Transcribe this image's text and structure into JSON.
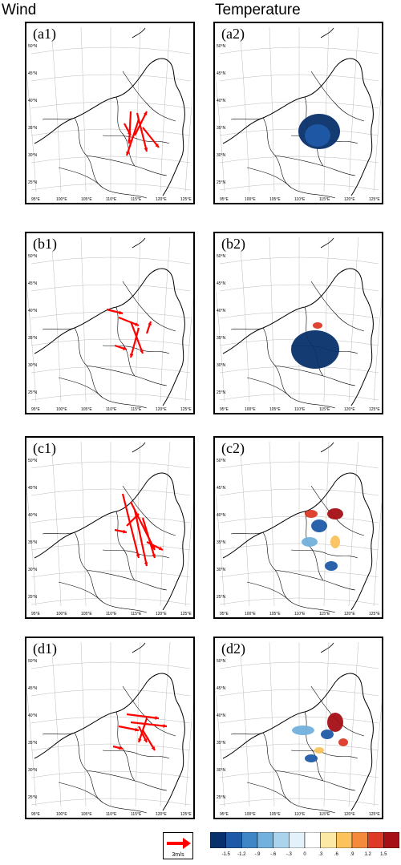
{
  "titles": {
    "wind": "Wind",
    "temperature": "Temperature"
  },
  "panels": [
    {
      "id": "a1",
      "label": "(a1)",
      "field": "wind"
    },
    {
      "id": "a2",
      "label": "(a2)",
      "field": "temperature"
    },
    {
      "id": "b1",
      "label": "(b1)",
      "field": "wind"
    },
    {
      "id": "b2",
      "label": "(b2)",
      "field": "temperature"
    },
    {
      "id": "c1",
      "label": "(c1)",
      "field": "wind"
    },
    {
      "id": "c2",
      "label": "(c2)",
      "field": "temperature"
    },
    {
      "id": "d1",
      "label": "(d1)",
      "field": "wind"
    },
    {
      "id": "d2",
      "label": "(d2)",
      "field": "temperature"
    }
  ],
  "lat_labels": [
    "50°N",
    "45°N",
    "40°N",
    "35°N",
    "30°N",
    "25°N"
  ],
  "lon_labels": [
    "95°E",
    "100°E",
    "105°E",
    "110°E",
    "115°E",
    "120°E",
    "125°E"
  ],
  "reference_vector": {
    "label": "3m/s",
    "color": "#ff0000"
  },
  "colorbar": {
    "ticks": [
      "-1.5",
      "-1.2",
      "-.9",
      "-.6",
      "-.3",
      "0",
      ".3",
      ".6",
      ".9",
      "1.2",
      "1.5"
    ],
    "colors": [
      "#08306b",
      "#1f5aa6",
      "#3f86c6",
      "#72b0dd",
      "#aad4ee",
      "#e3f1fa",
      "#ffffff",
      "#fde9a6",
      "#fcc25c",
      "#f68a3c",
      "#dd3a27",
      "#a50f15"
    ]
  },
  "colors": {
    "wind_arrow": "#ff0000",
    "border": "#000000"
  }
}
